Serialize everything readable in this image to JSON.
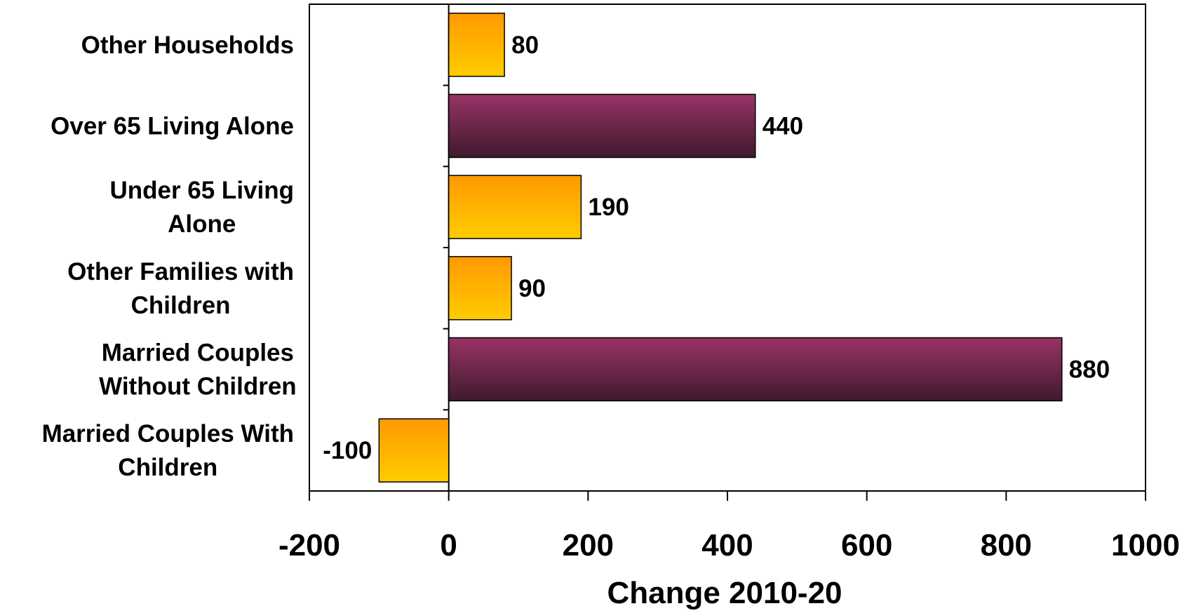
{
  "chart_data": {
    "type": "bar",
    "orientation": "horizontal",
    "categories": [
      [
        "Other Households"
      ],
      [
        "Over 65 Living Alone"
      ],
      [
        "Under 65 Living",
        "Alone"
      ],
      [
        "Other Families with",
        "Children"
      ],
      [
        "Married Couples",
        "Without Children"
      ],
      [
        "Married Couples With",
        "Children"
      ]
    ],
    "values": [
      80,
      440,
      190,
      90,
      880,
      -100
    ],
    "value_labels": [
      "80",
      "440",
      "190",
      "90",
      "880",
      "-100"
    ],
    "bar_styles": [
      "orange",
      "maroon",
      "orange",
      "orange",
      "maroon",
      "orange"
    ],
    "xlabel": "Change 2010-20",
    "ylabel": "",
    "xlim": [
      -200,
      1000
    ],
    "xticks": [
      -200,
      0,
      200,
      400,
      600,
      800,
      1000
    ],
    "xtick_labels": [
      "-200",
      "0",
      "200",
      "400",
      "600",
      "800",
      "1000"
    ],
    "grid": false,
    "legend": "none"
  },
  "colors": {
    "orange_top": "#FF9900",
    "orange_bottom": "#FFCC00",
    "maroon_top": "#993366",
    "maroon_bottom": "#3F1A2E",
    "axis": "#000000"
  }
}
